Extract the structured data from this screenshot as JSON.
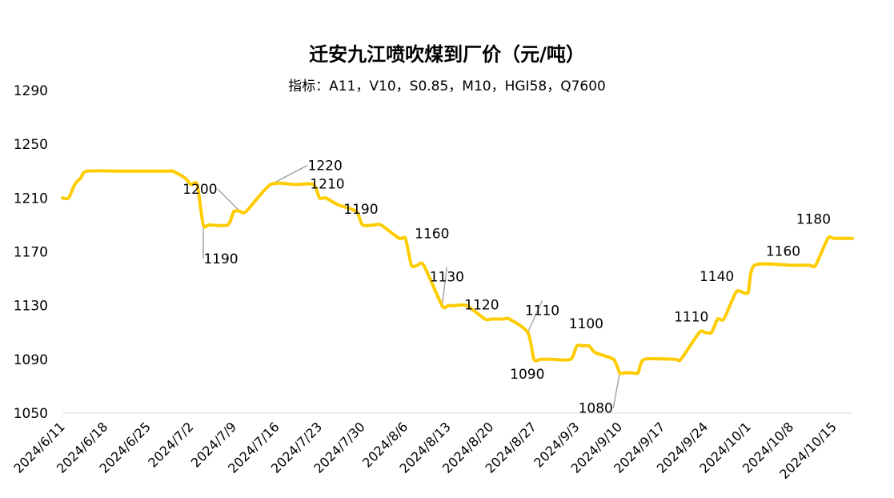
{
  "chart_data": {
    "type": "line",
    "title": "迁安九江喷吹煤到厂价（元/吨）",
    "subtitle": "指标：A11，V10，S0.85，M10，HGI58，Q7600",
    "line_color": "#FFCC00",
    "ylim": [
      1050,
      1290
    ],
    "yticks": [
      1050,
      1090,
      1130,
      1170,
      1210,
      1250,
      1290
    ],
    "xticks": [
      "2024/6/11",
      "2024/6/18",
      "2024/6/25",
      "2024/7/2",
      "2024/7/9",
      "2024/7/16",
      "2024/7/23",
      "2024/7/30",
      "2024/8/6",
      "2024/8/13",
      "2024/8/20",
      "2024/8/27",
      "2024/9/3",
      "2024/9/10",
      "2024/9/17",
      "2024/9/24",
      "2024/10/1",
      "2024/10/8",
      "2024/10/15"
    ],
    "grid": false,
    "legend": "none",
    "series": [
      {
        "points": [
          [
            "2024/6/11",
            1210
          ],
          [
            "2024/6/12",
            1210
          ],
          [
            "2024/6/13",
            1220
          ],
          [
            "2024/6/14",
            1225
          ],
          [
            "2024/6/15",
            1230
          ],
          [
            "2024/6/21",
            1230
          ],
          [
            "2024/6/24",
            1230
          ],
          [
            "2024/6/28",
            1230
          ],
          [
            "2024/6/29",
            1230
          ],
          [
            "2024/7/1",
            1225
          ],
          [
            "2024/7/2",
            1220
          ],
          [
            "2024/7/3",
            1220
          ],
          [
            "2024/7/4",
            1190
          ],
          [
            "2024/7/5",
            1190
          ],
          [
            "2024/7/8",
            1190
          ],
          [
            "2024/7/9",
            1200
          ],
          [
            "2024/7/10",
            1200
          ],
          [
            "2024/7/11",
            1200
          ],
          [
            "2024/7/15",
            1220
          ],
          [
            "2024/7/19",
            1220
          ],
          [
            "2024/7/22",
            1220
          ],
          [
            "2024/7/23",
            1210
          ],
          [
            "2024/7/24",
            1210
          ],
          [
            "2024/7/26",
            1205
          ],
          [
            "2024/7/29",
            1200
          ],
          [
            "2024/7/30",
            1190
          ],
          [
            "2024/8/1",
            1190
          ],
          [
            "2024/8/2",
            1190
          ],
          [
            "2024/8/5",
            1180
          ],
          [
            "2024/8/6",
            1180
          ],
          [
            "2024/8/7",
            1160
          ],
          [
            "2024/8/8",
            1160
          ],
          [
            "2024/8/9",
            1160
          ],
          [
            "2024/8/12",
            1130
          ],
          [
            "2024/8/13",
            1130
          ],
          [
            "2024/8/14",
            1130
          ],
          [
            "2024/8/16",
            1130
          ],
          [
            "2024/8/19",
            1120
          ],
          [
            "2024/8/20",
            1120
          ],
          [
            "2024/8/21",
            1120
          ],
          [
            "2024/8/22",
            1120
          ],
          [
            "2024/8/23",
            1120
          ],
          [
            "2024/8/26",
            1110
          ],
          [
            "2024/8/27",
            1090
          ],
          [
            "2024/8/28",
            1090
          ],
          [
            "2024/8/29",
            1090
          ],
          [
            "2024/8/30",
            1090
          ],
          [
            "2024/9/2",
            1090
          ],
          [
            "2024/9/3",
            1100
          ],
          [
            "2024/9/4",
            1100
          ],
          [
            "2024/9/5",
            1100
          ],
          [
            "2024/9/6",
            1095
          ],
          [
            "2024/9/9",
            1090
          ],
          [
            "2024/9/10",
            1080
          ],
          [
            "2024/9/11",
            1080
          ],
          [
            "2024/9/12",
            1080
          ],
          [
            "2024/9/13",
            1080
          ],
          [
            "2024/9/14",
            1090
          ],
          [
            "2024/9/19",
            1090
          ],
          [
            "2024/9/20",
            1090
          ],
          [
            "2024/9/23",
            1110
          ],
          [
            "2024/9/24",
            1110
          ],
          [
            "2024/9/25",
            1110
          ],
          [
            "2024/9/26",
            1120
          ],
          [
            "2024/9/27",
            1120
          ],
          [
            "2024/9/29",
            1140
          ],
          [
            "2024/9/30",
            1140
          ],
          [
            "2024/10/1",
            1140
          ],
          [
            "2024/10/2",
            1160
          ],
          [
            "2024/10/8",
            1160
          ],
          [
            "2024/10/11",
            1160
          ],
          [
            "2024/10/12",
            1160
          ],
          [
            "2024/10/14",
            1180
          ],
          [
            "2024/10/15",
            1180
          ],
          [
            "2024/10/18",
            1180
          ]
        ]
      }
    ],
    "annotations": [
      {
        "text": "1200",
        "date": "2024/7/10",
        "value": 1200,
        "leader": true
      },
      {
        "text": "1190",
        "date": "2024/7/4",
        "value": 1190,
        "leader": true
      },
      {
        "text": "1220",
        "date": "2024/7/15",
        "value": 1220,
        "leader": true
      },
      {
        "text": "1210",
        "date": "2024/7/24",
        "value": 1210,
        "leader": false
      },
      {
        "text": "1190",
        "date": "2024/7/30",
        "value": 1190,
        "leader": false
      },
      {
        "text": "1160",
        "date": "2024/8/8",
        "value": 1160,
        "leader": false
      },
      {
        "text": "1130",
        "date": "2024/8/12",
        "value": 1130,
        "leader": true
      },
      {
        "text": "1120",
        "date": "2024/8/19",
        "value": 1120,
        "leader": false
      },
      {
        "text": "1110",
        "date": "2024/8/26",
        "value": 1110,
        "leader": true
      },
      {
        "text": "1090",
        "date": "2024/8/28",
        "value": 1090,
        "leader": false
      },
      {
        "text": "1100",
        "date": "2024/9/4",
        "value": 1100,
        "leader": false
      },
      {
        "text": "1080",
        "date": "2024/9/10",
        "value": 1080,
        "leader": true
      },
      {
        "text": "1110",
        "date": "2024/9/23",
        "value": 1110,
        "leader": false
      },
      {
        "text": "1140",
        "date": "2024/9/29",
        "value": 1140,
        "leader": false
      },
      {
        "text": "1160",
        "date": "2024/10/8",
        "value": 1160,
        "leader": false
      },
      {
        "text": "1180",
        "date": "2024/10/14",
        "value": 1180,
        "leader": false
      }
    ]
  }
}
